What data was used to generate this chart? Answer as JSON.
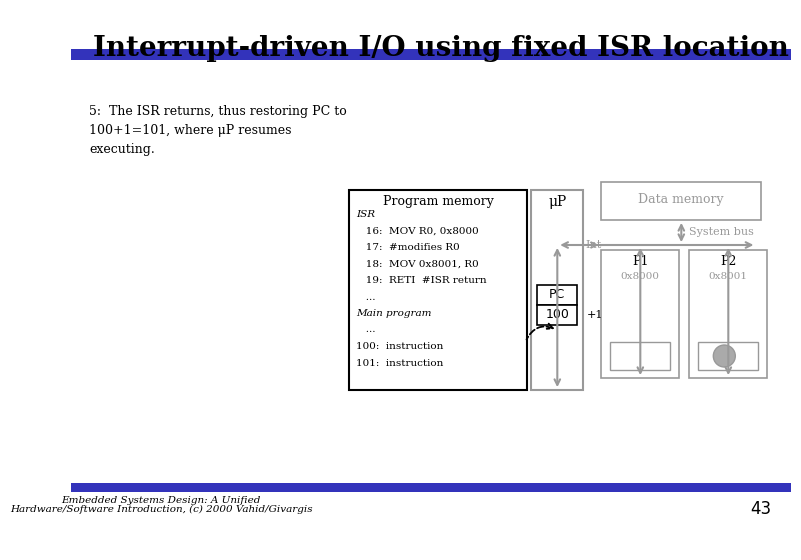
{
  "title": "Interrupt-driven I/O using fixed ISR location",
  "slide_number": "43",
  "footer_line1": "Embedded Systems Design: A Unified",
  "footer_line2": "Hardware/Software Introduction, (c) 2000 Vahid/Givargis",
  "left_text": "5:  The ISR returns, thus restoring PC to\n100+1=101, where μP resumes\nexecuting.",
  "prog_mem_title": "Program memory",
  "prog_mem_lines": [
    "ISR",
    "   16:  MOV R0, 0x8000",
    "   17:  #modifies R0",
    "   18:  MOV 0x8001, R0",
    "   19:  RETI  #ISR return",
    "   ...",
    "Main program",
    "   ...",
    "100:  instruction",
    "101:  instruction"
  ],
  "mu_p_label": "μP",
  "data_mem_label": "Data memory",
  "system_bus_label": "System bus",
  "int_label": "Int",
  "p1_label": "P1",
  "p2_label": "P2",
  "p1_addr": "0x8000",
  "p2_addr": "0x8001",
  "pc_label": "PC",
  "pc_value": "100",
  "plus1_label": "+1",
  "header_bar_color": "#3333bb",
  "footer_bar_color": "#3333bb",
  "text_color": "#000000",
  "gray_color": "#999999",
  "dark_gray": "#666666",
  "light_gray": "#aaaaaa",
  "bg_color": "#ffffff",
  "prog_mem_italic": [
    "ISR",
    "Main program"
  ]
}
